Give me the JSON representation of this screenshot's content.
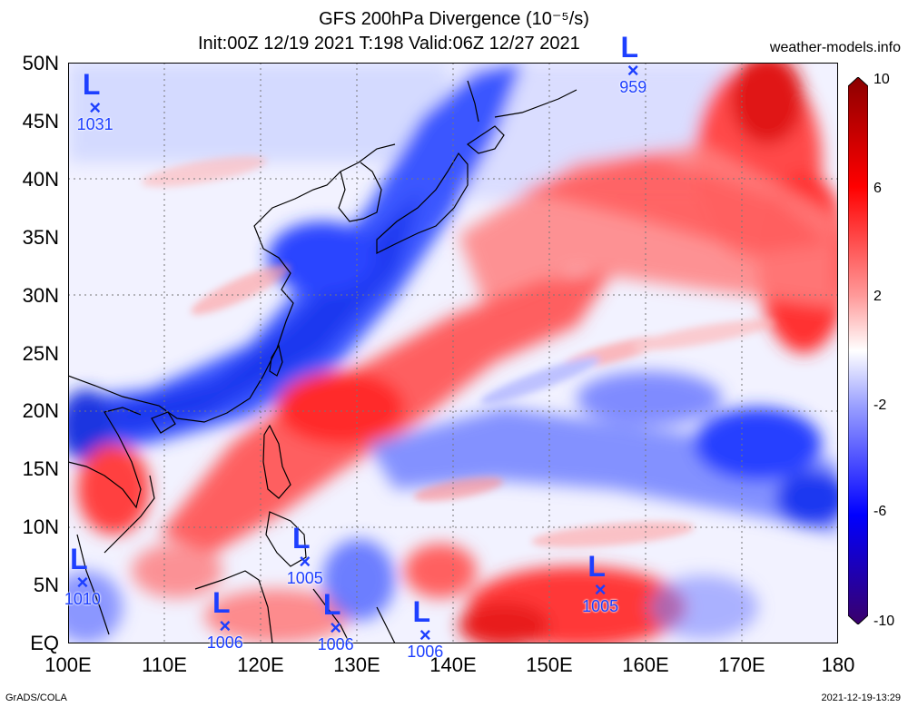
{
  "title": {
    "line1": "GFS 200hPa Divergence (10⁻⁵/s)",
    "line2": "Init:00Z 12/19 2021 T:198 Valid:06Z 12/27 2021",
    "site": "weather-models.info"
  },
  "map": {
    "lon_range": [
      100,
      180
    ],
    "lat_range": [
      0,
      50
    ],
    "lat_labels": [
      "50N",
      "45N",
      "40N",
      "35N",
      "30N",
      "25N",
      "20N",
      "15N",
      "10N",
      "5N",
      "EQ"
    ],
    "lon_labels": [
      "100E",
      "110E",
      "120E",
      "130E",
      "140E",
      "150E",
      "160E",
      "170E",
      "180"
    ],
    "grid": "dotted every 10 degrees"
  },
  "colorbar": {
    "labels": [
      "10",
      "6",
      "2",
      "-2",
      "-6",
      "-10"
    ],
    "colors": [
      "#3a006a",
      "#0000ff",
      "#7f7fff",
      "#ffffff",
      "#ff7f7f",
      "#ff0000",
      "#8b0000"
    ]
  },
  "lows": [
    {
      "label": "L",
      "value": "1031",
      "lon": 102.8,
      "lat": 46.1
    },
    {
      "label": "L",
      "value": "959",
      "lon": 158.7,
      "lat": 49.3
    },
    {
      "label": "L",
      "value": "1010",
      "lon": 101.5,
      "lat": 5.2
    },
    {
      "label": "L",
      "value": "1005",
      "lon": 124.6,
      "lat": 7.0
    },
    {
      "label": "L",
      "value": "1006",
      "lon": 116.3,
      "lat": 1.5
    },
    {
      "label": "L",
      "value": "1006",
      "lon": 127.8,
      "lat": 1.3
    },
    {
      "label": "L",
      "value": "1006",
      "lon": 137.1,
      "lat": 0.7
    },
    {
      "label": "L",
      "value": "1005",
      "lon": 155.3,
      "lat": 4.6
    }
  ],
  "footer": {
    "left": "GrADS/COLA",
    "right": "2021-12-19-13:29"
  }
}
